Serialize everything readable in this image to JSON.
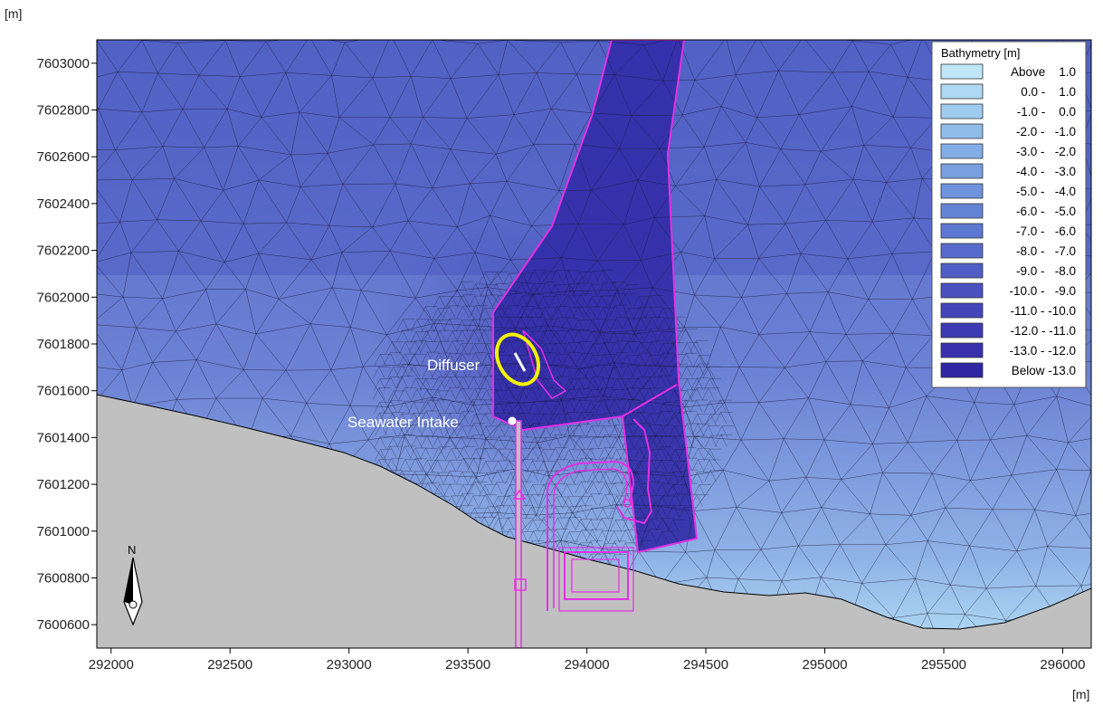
{
  "units": {
    "y_axis": "[m]",
    "x_axis": "[m]"
  },
  "axes": {
    "x_ticks": [
      292000,
      292500,
      293000,
      293500,
      294000,
      294500,
      295000,
      295500,
      296000
    ],
    "y_ticks": [
      7600600,
      7600800,
      7601000,
      7601200,
      7601400,
      7601600,
      7601800,
      7602000,
      7602200,
      7602400,
      7602600,
      7602800,
      7603000
    ],
    "xlim": [
      291940,
      296120
    ],
    "ylim": [
      7600500,
      7603100
    ]
  },
  "labels": {
    "diffuser": "Diffuser",
    "intake": "Seawater Intake",
    "north": "N"
  },
  "legend": {
    "title": "Bathymetry [m]",
    "placement": "top-right",
    "entries": [
      {
        "label": "Above    1.0",
        "color": "#bfe6f7"
      },
      {
        "label": "0.0 -    1.0",
        "color": "#aed8f3"
      },
      {
        "label": "-1.0 -    0.0",
        "color": "#9fcbef"
      },
      {
        "label": "-2.0 -   -1.0",
        "color": "#90bcea"
      },
      {
        "label": "-3.0 -   -2.0",
        "color": "#83ade5"
      },
      {
        "label": "-4.0 -   -3.0",
        "color": "#789fe0"
      },
      {
        "label": "-5.0 -   -4.0",
        "color": "#6e92db"
      },
      {
        "label": "-6.0 -   -5.0",
        "color": "#6584d6"
      },
      {
        "label": "-7.0 -   -6.0",
        "color": "#5d77d0"
      },
      {
        "label": "-8.0 -   -7.0",
        "color": "#566acb"
      },
      {
        "label": "-9.0 -   -8.0",
        "color": "#505dc5"
      },
      {
        "label": "-10.0 -   -9.0",
        "color": "#4a51bf"
      },
      {
        "label": "-11.0 - -10.0",
        "color": "#4445b9"
      },
      {
        "label": "-12.0 - -11.0",
        "color": "#3e3ab3"
      },
      {
        "label": "-13.0 - -12.0",
        "color": "#3830ad"
      },
      {
        "label": "Below -13.0",
        "color": "#2f26a5"
      }
    ]
  },
  "colors": {
    "land": "#c0c0c0",
    "boundary": "#e52fe5",
    "diffuser_ring": "#f2f200",
    "label": "#ffffff",
    "mesh": "#1a1a3a"
  }
}
